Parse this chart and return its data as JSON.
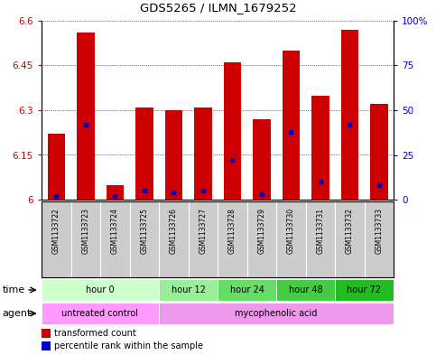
{
  "title": "GDS5265 / ILMN_1679252",
  "samples": [
    "GSM1133722",
    "GSM1133723",
    "GSM1133724",
    "GSM1133725",
    "GSM1133726",
    "GSM1133727",
    "GSM1133728",
    "GSM1133729",
    "GSM1133730",
    "GSM1133731",
    "GSM1133732",
    "GSM1133733"
  ],
  "transformed_count": [
    6.22,
    6.56,
    6.05,
    6.31,
    6.3,
    6.31,
    6.46,
    6.27,
    6.5,
    6.35,
    6.57,
    6.32
  ],
  "percentile_rank": [
    2,
    42,
    2,
    5,
    4,
    5,
    22,
    3,
    38,
    10,
    42,
    8
  ],
  "ylim_left": [
    6.0,
    6.6
  ],
  "ylim_right": [
    0,
    100
  ],
  "yticks_left": [
    6.0,
    6.15,
    6.3,
    6.45,
    6.6
  ],
  "yticks_left_labels": [
    "6",
    "6.15",
    "6.3",
    "6.45",
    "6.6"
  ],
  "yticks_right": [
    0,
    25,
    50,
    75,
    100
  ],
  "yticks_right_labels": [
    "0",
    "25",
    "50",
    "75",
    "100%"
  ],
  "bar_color": "#cc0000",
  "blue_color": "#0000cc",
  "base_value": 6.0,
  "time_groups": [
    {
      "label": "hour 0",
      "start": 0,
      "end": 3,
      "color": "#ccffcc"
    },
    {
      "label": "hour 12",
      "start": 4,
      "end": 5,
      "color": "#99ee99"
    },
    {
      "label": "hour 24",
      "start": 6,
      "end": 7,
      "color": "#66dd66"
    },
    {
      "label": "hour 48",
      "start": 8,
      "end": 9,
      "color": "#44cc44"
    },
    {
      "label": "hour 72",
      "start": 10,
      "end": 11,
      "color": "#22bb22"
    }
  ],
  "agent_groups": [
    {
      "label": "untreated control",
      "start": 0,
      "end": 3,
      "color": "#ff99ff"
    },
    {
      "label": "mycophenolic acid",
      "start": 4,
      "end": 11,
      "color": "#ee99ee"
    }
  ],
  "legend_items": [
    {
      "label": "transformed count",
      "color": "#cc0000"
    },
    {
      "label": "percentile rank within the sample",
      "color": "#0000cc"
    }
  ],
  "xlabel_time": "time",
  "xlabel_agent": "agent",
  "tick_label_color_left": "#cc0000",
  "tick_label_color_right": "#0000cc",
  "bg_color": "#ffffff",
  "plot_bg_color": "#ffffff",
  "sample_bg_color": "#cccccc",
  "border_color": "#000000"
}
